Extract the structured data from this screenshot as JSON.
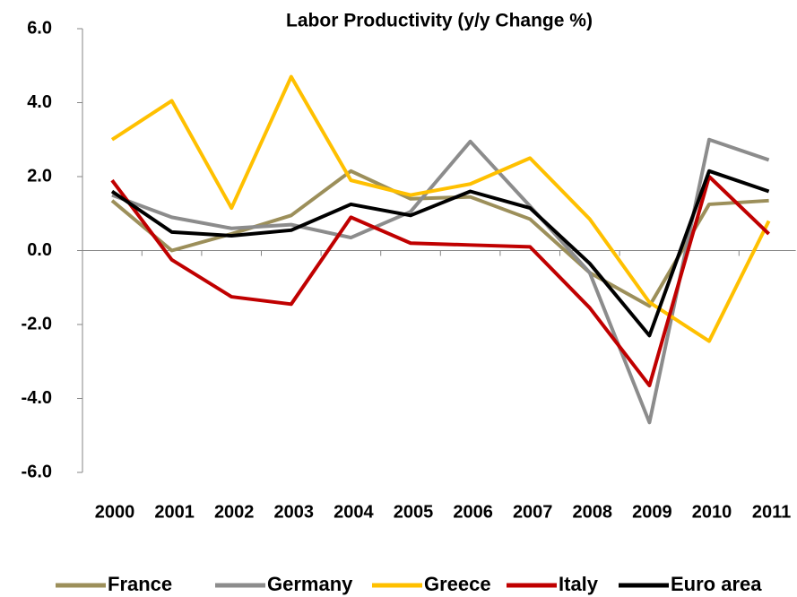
{
  "chart_data": {
    "type": "line",
    "title": "Labor  Productivity (y/y Change %)",
    "categories": [
      "2000",
      "2001",
      "2002",
      "2003",
      "2004",
      "2005",
      "2006",
      "2007",
      "2008",
      "2009",
      "2010",
      "2011"
    ],
    "series": [
      {
        "name": "France",
        "color": "#9c8f5a",
        "values": [
          1.35,
          0.0,
          0.45,
          0.95,
          2.15,
          1.4,
          1.45,
          0.85,
          -0.6,
          -1.5,
          1.25,
          1.35
        ]
      },
      {
        "name": "Germany",
        "color": "#8c8c8c",
        "values": [
          1.5,
          0.9,
          0.6,
          0.7,
          0.35,
          1.05,
          2.95,
          1.2,
          -0.6,
          -4.65,
          3.0,
          2.45
        ]
      },
      {
        "name": "Greece",
        "color": "#ffc000",
        "values": [
          3.0,
          4.05,
          1.15,
          4.7,
          1.9,
          1.5,
          1.8,
          2.5,
          0.85,
          -1.4,
          -2.45,
          0.8
        ]
      },
      {
        "name": "Italy",
        "color": "#c00000",
        "values": [
          1.9,
          -0.25,
          -1.25,
          -1.45,
          0.9,
          0.2,
          0.15,
          0.1,
          -1.55,
          -3.65,
          2.0,
          0.45
        ]
      },
      {
        "name": "Euro area",
        "color": "#000000",
        "values": [
          1.6,
          0.5,
          0.4,
          0.55,
          1.25,
          0.95,
          1.6,
          1.15,
          -0.35,
          -2.3,
          2.15,
          1.6
        ]
      }
    ],
    "ylim": [
      -6,
      6
    ],
    "yticks": [
      {
        "value": -6,
        "label": "-6.0"
      },
      {
        "value": -4,
        "label": "-4.0"
      },
      {
        "value": -2,
        "label": "-2.0"
      },
      {
        "value": 0,
        "label": "0.0"
      },
      {
        "value": 2,
        "label": "2.0"
      },
      {
        "value": 4,
        "label": "4.0"
      },
      {
        "value": 6,
        "label": "6.0"
      }
    ],
    "legend": "bottom"
  }
}
